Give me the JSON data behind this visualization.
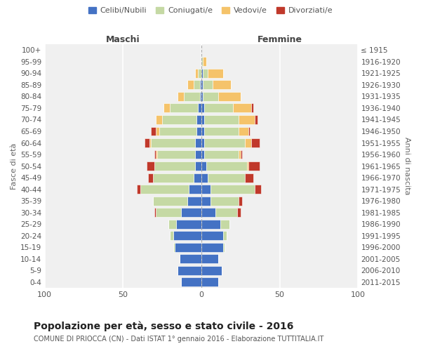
{
  "age_groups": [
    "0-4",
    "5-9",
    "10-14",
    "15-19",
    "20-24",
    "25-29",
    "30-34",
    "35-39",
    "40-44",
    "45-49",
    "50-54",
    "55-59",
    "60-64",
    "65-69",
    "70-74",
    "75-79",
    "80-84",
    "85-89",
    "90-94",
    "95-99",
    "100+"
  ],
  "birth_years": [
    "2011-2015",
    "2006-2010",
    "2001-2005",
    "1996-2000",
    "1991-1995",
    "1986-1990",
    "1981-1985",
    "1976-1980",
    "1971-1975",
    "1966-1970",
    "1961-1965",
    "1956-1960",
    "1951-1955",
    "1946-1950",
    "1941-1945",
    "1936-1940",
    "1931-1935",
    "1926-1930",
    "1921-1925",
    "1916-1920",
    "≤ 1915"
  ],
  "maschi": {
    "celibi": [
      13,
      15,
      14,
      17,
      18,
      16,
      13,
      9,
      8,
      5,
      4,
      4,
      4,
      3,
      3,
      2,
      1,
      1,
      0,
      0,
      0
    ],
    "coniugati": [
      0,
      0,
      0,
      1,
      2,
      5,
      16,
      22,
      31,
      26,
      26,
      24,
      28,
      24,
      22,
      18,
      10,
      4,
      2,
      0,
      0
    ],
    "vedovi": [
      0,
      0,
      0,
      0,
      0,
      0,
      0,
      0,
      0,
      0,
      0,
      1,
      1,
      2,
      4,
      4,
      4,
      4,
      2,
      0,
      0
    ],
    "divorziati": [
      0,
      0,
      0,
      0,
      0,
      0,
      1,
      0,
      2,
      3,
      5,
      1,
      3,
      3,
      0,
      0,
      0,
      0,
      0,
      0,
      0
    ]
  },
  "femmine": {
    "nubili": [
      11,
      13,
      11,
      14,
      14,
      12,
      9,
      6,
      6,
      4,
      3,
      2,
      2,
      2,
      2,
      2,
      1,
      1,
      1,
      0,
      0
    ],
    "coniugate": [
      0,
      0,
      0,
      1,
      2,
      6,
      14,
      18,
      28,
      24,
      26,
      22,
      26,
      22,
      22,
      18,
      10,
      6,
      3,
      1,
      0
    ],
    "vedove": [
      0,
      0,
      0,
      0,
      0,
      0,
      0,
      0,
      0,
      0,
      1,
      1,
      4,
      6,
      10,
      12,
      14,
      12,
      10,
      2,
      0
    ],
    "divorziate": [
      0,
      0,
      0,
      0,
      0,
      0,
      2,
      2,
      4,
      5,
      7,
      1,
      5,
      1,
      2,
      1,
      0,
      0,
      0,
      0,
      0
    ]
  },
  "colors": {
    "celibi": "#4472C4",
    "coniugati": "#C5D9A4",
    "vedovi": "#F5C36A",
    "divorziati": "#C0392B"
  },
  "xlim": 100,
  "title": "Popolazione per età, sesso e stato civile - 2016",
  "subtitle": "COMUNE DI PRIOCCA (CN) - Dati ISTAT 1° gennaio 2016 - Elaborazione TUTTITALIA.IT",
  "ylabel_left": "Fasce di età",
  "ylabel_right": "Anni di nascita",
  "xlabel_maschi": "Maschi",
  "xlabel_femmine": "Femmine",
  "plot_bg": "#f0f0f0",
  "fig_bg": "#ffffff"
}
